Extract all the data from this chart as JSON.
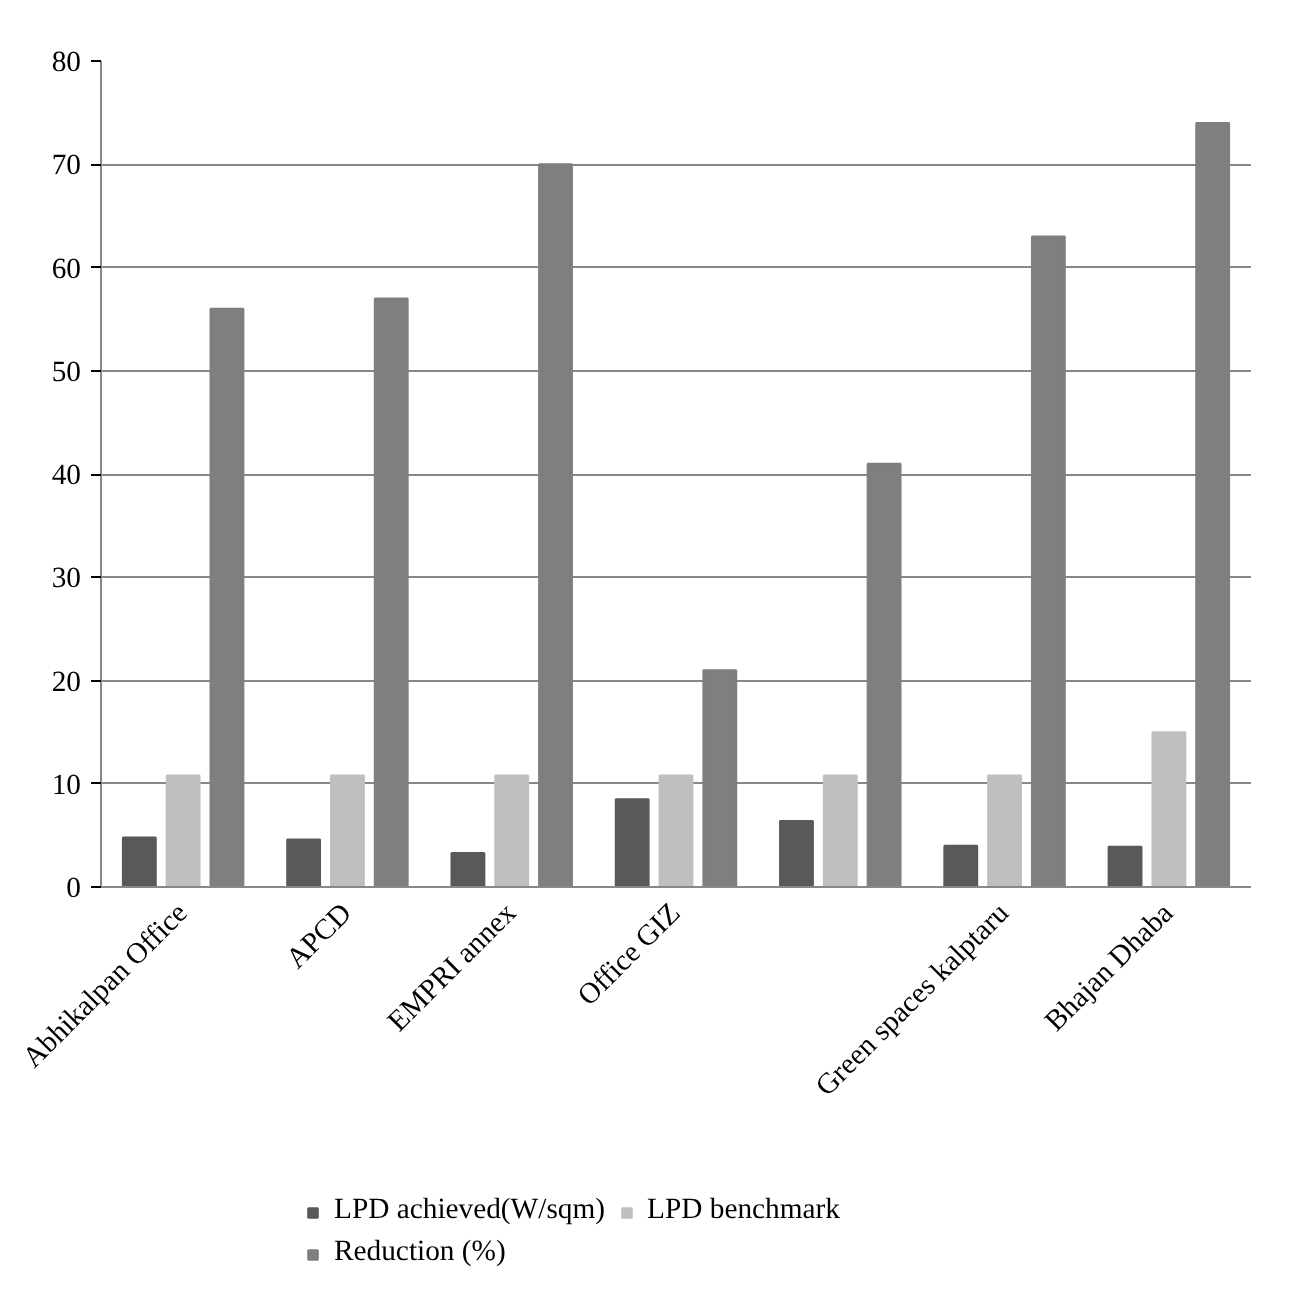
{
  "chart_data": {
    "type": "bar",
    "categories": [
      "Abhikalpan Office",
      "APCD",
      "EMPRI annex",
      "Office GIZ",
      null,
      "Green spaces kalptaru",
      "Bhajan Dhaba"
    ],
    "series": [
      {
        "name": "LPD achieved(W/sqm)",
        "color": "#595959",
        "values": [
          4.8,
          4.6,
          3.3,
          8.5,
          6.4,
          4.0,
          3.9
        ]
      },
      {
        "name": "LPD benchmark",
        "color": "#bfbfbf",
        "values": [
          10.8,
          10.8,
          10.8,
          10.8,
          10.8,
          10.8,
          15
        ]
      },
      {
        "name": "Reduction (%)",
        "color": "#7f7f7f",
        "values": [
          56,
          57,
          70,
          21,
          41,
          63,
          74
        ]
      }
    ],
    "ylim": [
      0,
      80
    ],
    "yticks": [
      0,
      10,
      20,
      30,
      40,
      50,
      60,
      70,
      80
    ],
    "grid": "y",
    "legend": "bottom"
  }
}
